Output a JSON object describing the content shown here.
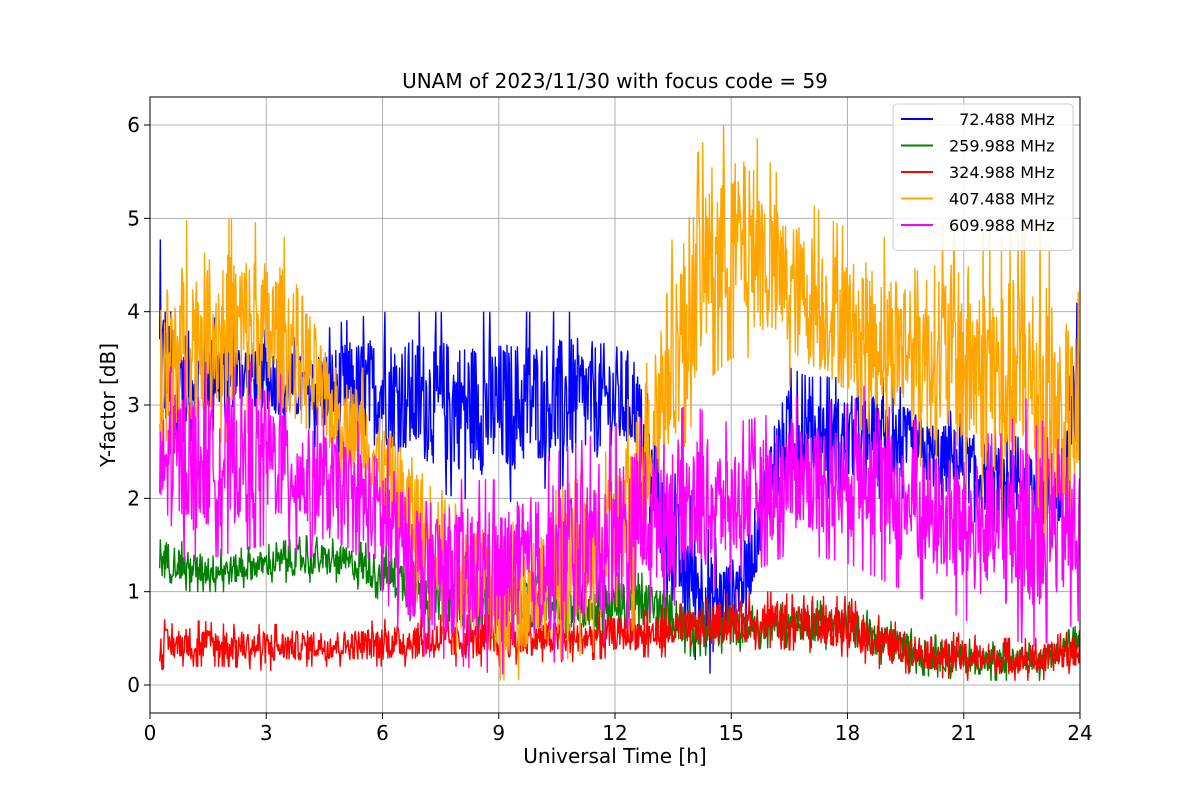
{
  "chart_data": {
    "type": "line",
    "title": "UNAM of 2023/11/30 with focus code = 59",
    "xlabel": "Universal Time [h]",
    "ylabel": "Y-factor [dB]",
    "xlim": [
      0,
      24
    ],
    "ylim": [
      -0.3,
      6.3
    ],
    "xticks": [
      0,
      3,
      6,
      9,
      12,
      15,
      18,
      21,
      24
    ],
    "yticks": [
      0,
      1,
      2,
      3,
      4,
      5,
      6
    ],
    "grid": true,
    "legend_position": "upper right",
    "x_data_range": [
      0.25,
      24
    ],
    "series": [
      {
        "name": "  72.488 MHz",
        "color": "#0000ff",
        "envelope": {
          "x": [
            0.25,
            0.5,
            1,
            2,
            3,
            4,
            5,
            6,
            7,
            8,
            9,
            10,
            11,
            12,
            12.5,
            13,
            13.5,
            14,
            14.5,
            15,
            15.5,
            16,
            16.5,
            17,
            18,
            19,
            20,
            21,
            22,
            23,
            23.5,
            24
          ],
          "low": [
            2.0,
            2.6,
            2.6,
            2.8,
            2.8,
            2.6,
            2.4,
            2.3,
            2.1,
            2.0,
            1.9,
            2.1,
            2.1,
            2.2,
            2.3,
            1.4,
            0.6,
            0.3,
            0.1,
            0.4,
            0.8,
            1.5,
            2.0,
            2.0,
            2.0,
            2.0,
            2.0,
            1.8,
            1.6,
            1.5,
            1.5,
            1.9
          ],
          "high": [
            4.8,
            4.3,
            4.0,
            3.9,
            3.8,
            3.7,
            3.9,
            4.0,
            4.0,
            4.0,
            4.0,
            4.0,
            4.0,
            3.9,
            3.8,
            2.8,
            2.3,
            2.0,
            1.6,
            1.5,
            1.8,
            3.0,
            3.4,
            3.3,
            3.3,
            3.3,
            3.0,
            2.9,
            2.7,
            2.6,
            2.5,
            4.4
          ]
        }
      },
      {
        "name": "259.988 MHz",
        "color": "#008000",
        "envelope": {
          "x": [
            0.25,
            0.5,
            1,
            2,
            3,
            4,
            5,
            6,
            7,
            8,
            9,
            10,
            11,
            12,
            13,
            14,
            15,
            16,
            17,
            18,
            19,
            20,
            21,
            22,
            23,
            24
          ],
          "low": [
            1.0,
            1.1,
            1.0,
            1.0,
            1.1,
            1.1,
            1.1,
            0.9,
            0.6,
            0.5,
            0.5,
            0.5,
            0.5,
            0.5,
            0.5,
            0.3,
            0.35,
            0.4,
            0.4,
            0.35,
            0.2,
            0.1,
            0.05,
            0.05,
            0.05,
            0.35
          ],
          "high": [
            1.7,
            1.6,
            1.5,
            1.45,
            1.5,
            1.6,
            1.55,
            1.5,
            1.45,
            1.4,
            1.3,
            1.3,
            1.2,
            1.2,
            1.2,
            0.9,
            0.85,
            0.85,
            0.9,
            0.9,
            0.7,
            0.55,
            0.5,
            0.45,
            0.45,
            0.65
          ]
        }
      },
      {
        "name": "324.988 MHz",
        "color": "#ff0000",
        "envelope": {
          "x": [
            0.25,
            0.5,
            1,
            2,
            3,
            4,
            5,
            6,
            7,
            8,
            9,
            10,
            11,
            12,
            13,
            14,
            15,
            16,
            17,
            18,
            19,
            20,
            21,
            22,
            23,
            24
          ],
          "low": [
            0.15,
            0.2,
            0.2,
            0.2,
            0.15,
            0.2,
            0.2,
            0.2,
            0.2,
            0.2,
            0.2,
            0.25,
            0.25,
            0.3,
            0.3,
            0.3,
            0.35,
            0.4,
            0.35,
            0.3,
            0.15,
            0.1,
            0.05,
            0.05,
            0.05,
            0.15
          ],
          "high": [
            0.75,
            0.65,
            0.7,
            0.65,
            0.65,
            0.65,
            0.65,
            0.7,
            0.75,
            0.75,
            0.75,
            0.75,
            0.75,
            0.8,
            0.8,
            0.9,
            1.0,
            1.0,
            0.95,
            0.95,
            0.7,
            0.6,
            0.55,
            0.5,
            0.5,
            0.6
          ]
        }
      },
      {
        "name": "407.488 MHz",
        "color": "#ffa500",
        "envelope": {
          "x": [
            0.25,
            0.5,
            1,
            1.5,
            2,
            2.5,
            3,
            3.5,
            4,
            4.5,
            5,
            5.5,
            6,
            6.5,
            7,
            7.5,
            8,
            8.5,
            9,
            9.5,
            10,
            11,
            12,
            12.5,
            13,
            13.5,
            14,
            14.5,
            15,
            15.5,
            16,
            16.5,
            17,
            17.5,
            18,
            19,
            20,
            21,
            22,
            23,
            23.5,
            24
          ],
          "low": [
            1.8,
            2.0,
            2.4,
            2.6,
            2.6,
            2.7,
            2.6,
            2.6,
            2.4,
            2.3,
            2.2,
            2.0,
            1.6,
            1.2,
            0.8,
            0.6,
            0.3,
            0.2,
            0.05,
            0.05,
            0.2,
            0.3,
            0.4,
            0.6,
            1.4,
            2.2,
            2.8,
            3.3,
            3.5,
            3.5,
            3.3,
            3.2,
            3.1,
            3.0,
            2.8,
            2.6,
            2.3,
            2.0,
            1.7,
            1.3,
            1.1,
            1.5
          ],
          "high": [
            4.6,
            4.8,
            5.0,
            5.0,
            5.0,
            5.0,
            4.9,
            4.8,
            4.5,
            3.8,
            3.5,
            3.4,
            3.0,
            2.8,
            2.6,
            2.4,
            2.2,
            2.0,
            1.6,
            1.8,
            2.0,
            2.2,
            2.6,
            3.3,
            4.4,
            4.8,
            5.6,
            6.0,
            6.0,
            6.0,
            5.6,
            5.3,
            5.2,
            5.0,
            4.9,
            4.8,
            4.9,
            5.0,
            4.8,
            5.0,
            4.4,
            4.2
          ]
        }
      },
      {
        "name": "609.988 MHz",
        "color": "#ff00ff",
        "envelope": {
          "x": [
            0.25,
            0.5,
            1,
            2,
            3,
            4,
            5,
            6,
            6.5,
            7,
            7.5,
            8,
            9,
            10,
            11,
            12,
            13,
            14,
            15,
            16,
            16.5,
            17,
            18,
            18.5,
            19,
            20,
            21,
            22,
            23,
            24
          ],
          "low": [
            1.5,
            1.4,
            1.3,
            1.4,
            1.5,
            1.4,
            1.2,
            1.0,
            0.5,
            0.3,
            0.3,
            0.2,
            0.1,
            0.2,
            0.3,
            0.5,
            0.8,
            0.9,
            1.1,
            1.3,
            1.4,
            1.4,
            1.3,
            1.2,
            1.1,
            0.9,
            0.7,
            0.5,
            0.4,
            0.7
          ],
          "high": [
            3.0,
            3.4,
            3.5,
            3.4,
            3.5,
            3.0,
            2.9,
            2.7,
            2.5,
            2.3,
            2.2,
            2.2,
            2.2,
            2.4,
            2.6,
            2.8,
            2.9,
            3.0,
            2.8,
            2.9,
            3.1,
            3.1,
            3.0,
            4.0,
            3.0,
            2.8,
            2.7,
            2.7,
            3.3,
            2.6
          ]
        }
      }
    ]
  }
}
